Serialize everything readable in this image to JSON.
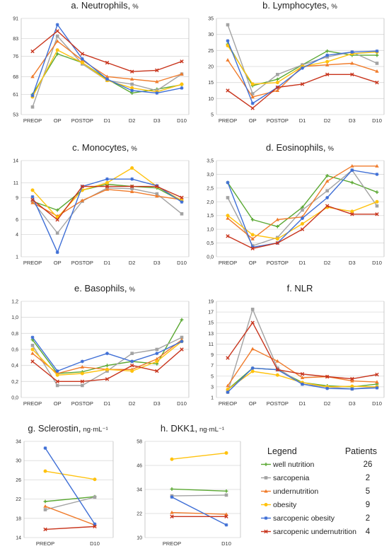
{
  "series_styles": [
    {
      "key": "wn",
      "color": "#5aa832",
      "marker": "plus"
    },
    {
      "key": "sa",
      "color": "#a3a3a3",
      "marker": "square"
    },
    {
      "key": "un",
      "color": "#f07c2c",
      "marker": "triangle"
    },
    {
      "key": "ob",
      "color": "#ffc20e",
      "marker": "circle"
    },
    {
      "key": "so",
      "color": "#3f6fd6",
      "marker": "star"
    },
    {
      "key": "su",
      "color": "#c8341c",
      "marker": "x"
    }
  ],
  "legend": {
    "heading": "Legend",
    "count_heading": "Patients",
    "items": [
      {
        "key": "wn",
        "label": "well nutrition",
        "count": "26"
      },
      {
        "key": "sa",
        "label": "sarcopenia",
        "count": "2"
      },
      {
        "key": "un",
        "label": "undernutrition",
        "count": "5"
      },
      {
        "key": "ob",
        "label": "obesity",
        "count": "9"
      },
      {
        "key": "so",
        "label": "sarcopenic obesity",
        "count": "2"
      },
      {
        "key": "su",
        "label": "sarcopenic undernutrition",
        "count": "4"
      }
    ]
  },
  "chart_data": [
    {
      "id": "neutrophils",
      "type": "line",
      "title": "a. Neutrophils,",
      "unit": "%",
      "x": [
        "PREOP",
        "OP",
        "POSTOP",
        "D1",
        "D2",
        "D3",
        "D10"
      ],
      "yticks": [
        "53",
        "61",
        "68",
        "76",
        "83",
        "91"
      ],
      "ylim": [
        53,
        91
      ],
      "grid": true,
      "series": [
        {
          "key": "wn",
          "values": [
            61,
            77,
            73.5,
            67,
            61.5,
            63,
            64.8
          ]
        },
        {
          "key": "sa",
          "values": [
            56,
            84,
            73,
            66.5,
            65,
            62.5,
            69
          ]
        },
        {
          "key": "un",
          "values": [
            68,
            82,
            74.5,
            68,
            67,
            66,
            69
          ]
        },
        {
          "key": "ob",
          "values": [
            60,
            78.5,
            73.5,
            66.5,
            63.5,
            62,
            65
          ]
        },
        {
          "key": "so",
          "values": [
            60.5,
            88.5,
            75,
            67,
            62.5,
            61.5,
            63.5
          ]
        },
        {
          "key": "su",
          "values": [
            78,
            86,
            77,
            73.5,
            70,
            70.5,
            74
          ]
        }
      ]
    },
    {
      "id": "lymphocytes",
      "type": "line",
      "title": "b. Lymphocytes,",
      "unit": "%",
      "x": [
        "PREOP",
        "OP",
        "POSTOP",
        "D1",
        "D2",
        "D3",
        "D10"
      ],
      "yticks": [
        "5",
        "10",
        "15",
        "20",
        "25",
        "30",
        "35"
      ],
      "ylim": [
        5,
        35
      ],
      "grid": true,
      "series": [
        {
          "key": "wn",
          "values": [
            27,
            14,
            16,
            20.5,
            24.8,
            23.5,
            23.5
          ]
        },
        {
          "key": "sa",
          "values": [
            33,
            11.5,
            17.5,
            20.5,
            23,
            24.5,
            21
          ]
        },
        {
          "key": "un",
          "values": [
            22,
            10.5,
            12.5,
            20,
            20.5,
            21,
            18.5
          ]
        },
        {
          "key": "ob",
          "values": [
            26.5,
            14.5,
            15,
            20,
            21.5,
            24,
            24.5
          ]
        },
        {
          "key": "so",
          "values": [
            28,
            8.5,
            13.5,
            19.5,
            23.5,
            24.5,
            24.8
          ]
        },
        {
          "key": "su",
          "values": [
            12.5,
            7,
            13.5,
            14.5,
            17.5,
            17.5,
            15
          ]
        }
      ]
    },
    {
      "id": "monocytes",
      "type": "line",
      "title": "c. Monocytes,",
      "unit": "%",
      "x": [
        "PREOP",
        "OP",
        "POSTOP",
        "D1",
        "D2",
        "D3",
        "D10"
      ],
      "yticks": [
        "1",
        "4",
        "6",
        "9",
        "11",
        "14"
      ],
      "ylim": [
        1,
        14
      ],
      "grid": true,
      "series": [
        {
          "key": "wn",
          "values": [
            8.5,
            7.3,
            10,
            10.8,
            10.5,
            10.3,
            8.5
          ]
        },
        {
          "key": "sa",
          "values": [
            8.5,
            4.2,
            8.5,
            10.3,
            10.2,
            9.5,
            6.8
          ]
        },
        {
          "key": "un",
          "values": [
            8.3,
            6.5,
            8.6,
            10.1,
            9.8,
            9.2,
            8.7
          ]
        },
        {
          "key": "ob",
          "values": [
            10,
            6.3,
            10,
            11,
            13,
            10.5,
            8.6
          ]
        },
        {
          "key": "so",
          "values": [
            9.1,
            1.6,
            10.5,
            11.5,
            11.5,
            10.6,
            8.4
          ]
        },
        {
          "key": "su",
          "values": [
            8.7,
            6,
            10.5,
            10.5,
            10.5,
            10.5,
            9
          ]
        }
      ]
    },
    {
      "id": "eosinophils",
      "type": "line",
      "title": "d. Eosinophils,",
      "unit": "%",
      "x": [
        "PREOP",
        "OP",
        "POSTOP",
        "D1",
        "D2",
        "D3",
        "D10"
      ],
      "yticks": [
        "0,0",
        "0,5",
        "1,0",
        "1,5",
        "2,0",
        "2,5",
        "3,0",
        "3,5"
      ],
      "ylim": [
        0,
        3.5
      ],
      "grid": true,
      "series": [
        {
          "key": "wn",
          "values": [
            2.7,
            1.35,
            1.1,
            1.8,
            2.95,
            2.7,
            2.35
          ]
        },
        {
          "key": "sa",
          "values": [
            2.15,
            0.4,
            0.7,
            1.7,
            2.4,
            3.15,
            1.85
          ]
        },
        {
          "key": "un",
          "values": [
            1.4,
            0.65,
            1.35,
            1.45,
            2.75,
            3.3,
            3.3
          ]
        },
        {
          "key": "ob",
          "values": [
            1.5,
            0.8,
            0.65,
            1.2,
            1.8,
            1.65,
            2
          ]
        },
        {
          "key": "so",
          "values": [
            2.7,
            0.35,
            0.5,
            1.4,
            2.15,
            3.15,
            3
          ]
        },
        {
          "key": "su",
          "values": [
            0.75,
            0.3,
            0.5,
            1,
            1.85,
            1.55,
            1.55
          ]
        }
      ]
    },
    {
      "id": "basophils",
      "type": "line",
      "title": "e. Basophils,",
      "unit": "%",
      "x": [
        "PREOP",
        "OP",
        "POSTOP",
        "D1",
        "D2",
        "D3",
        "D10"
      ],
      "yticks": [
        "0,0",
        "0,2",
        "0,4",
        "0,6",
        "0,8",
        "1,0",
        "1,2"
      ],
      "ylim": [
        0,
        1.2
      ],
      "grid": true,
      "series": [
        {
          "key": "wn",
          "values": [
            0.72,
            0.3,
            0.32,
            0.4,
            0.45,
            0.42,
            0.97
          ]
        },
        {
          "key": "sa",
          "values": [
            0.65,
            0.15,
            0.15,
            0.33,
            0.55,
            0.6,
            0.75
          ]
        },
        {
          "key": "un",
          "values": [
            0.55,
            0.3,
            0.38,
            0.35,
            0.35,
            0.48,
            0.72
          ]
        },
        {
          "key": "ob",
          "values": [
            0.6,
            0.28,
            0.3,
            0.35,
            0.33,
            0.45,
            0.7
          ]
        },
        {
          "key": "so",
          "values": [
            0.75,
            0.33,
            0.45,
            0.55,
            0.45,
            0.55,
            0.7
          ]
        },
        {
          "key": "su",
          "values": [
            0.45,
            0.2,
            0.2,
            0.23,
            0.4,
            0.33,
            0.6
          ]
        }
      ]
    },
    {
      "id": "nlr",
      "type": "line",
      "title": "f. NLR",
      "unit": "",
      "x": [
        "PREOP",
        "OP",
        "POSTOP",
        "D1",
        "D2",
        "D3",
        "D10"
      ],
      "yticks": [
        "1",
        "3",
        "5",
        "7",
        "9",
        "11",
        "13",
        "15",
        "17",
        "19"
      ],
      "ylim": [
        1,
        19
      ],
      "grid": true,
      "series": [
        {
          "key": "wn",
          "values": [
            2.5,
            6.5,
            6.2,
            3.8,
            3.2,
            3,
            3.5
          ]
        },
        {
          "key": "sa",
          "values": [
            2,
            17.5,
            6.5,
            3.5,
            3,
            2.6,
            3
          ]
        },
        {
          "key": "un",
          "values": [
            3.2,
            10.1,
            7.8,
            4.7,
            4.9,
            4.1,
            3.9
          ]
        },
        {
          "key": "ob",
          "values": [
            2.5,
            5.9,
            5.2,
            3.8,
            3,
            3.1,
            3
          ]
        },
        {
          "key": "so",
          "values": [
            2,
            6.5,
            6.2,
            3.5,
            2.7,
            2.6,
            2.8
          ]
        },
        {
          "key": "su",
          "values": [
            8.4,
            15,
            6.2,
            5.4,
            4.9,
            4.5,
            5.3
          ]
        }
      ]
    },
    {
      "id": "sclerostin",
      "type": "line",
      "title": "g. Sclerostin,",
      "unit": "ng·mL⁻¹",
      "x": [
        "PREOP",
        "D10"
      ],
      "yticks": [
        "14",
        "18",
        "22",
        "26",
        "30",
        "34"
      ],
      "ylim": [
        14,
        34
      ],
      "grid": true,
      "series": [
        {
          "key": "wn",
          "values": [
            21.5,
            22.5
          ]
        },
        {
          "key": "sa",
          "values": [
            19.8,
            22.4
          ]
        },
        {
          "key": "un",
          "values": [
            20.5,
            16.6
          ]
        },
        {
          "key": "ob",
          "values": [
            27.8,
            26.1
          ]
        },
        {
          "key": "so",
          "values": [
            32.6,
            16.8
          ]
        },
        {
          "key": "su",
          "values": [
            15.7,
            16.3
          ]
        }
      ]
    },
    {
      "id": "dkk1",
      "type": "line",
      "title": "h. DKK1,",
      "unit": "ng·mL⁻¹",
      "x": [
        "PREOP",
        "D10"
      ],
      "yticks": [
        "10",
        "22",
        "34",
        "46",
        "58"
      ],
      "ylim": [
        10,
        58
      ],
      "grid": true,
      "series": [
        {
          "key": "wn",
          "values": [
            34.2,
            33.2
          ]
        },
        {
          "key": "sa",
          "values": [
            30.8,
            31.2
          ]
        },
        {
          "key": "un",
          "values": [
            22.5,
            21.6
          ]
        },
        {
          "key": "ob",
          "values": [
            49.1,
            52.2
          ]
        },
        {
          "key": "so",
          "values": [
            30.2,
            16.3
          ]
        },
        {
          "key": "su",
          "values": [
            20.5,
            20.5
          ]
        }
      ]
    }
  ]
}
